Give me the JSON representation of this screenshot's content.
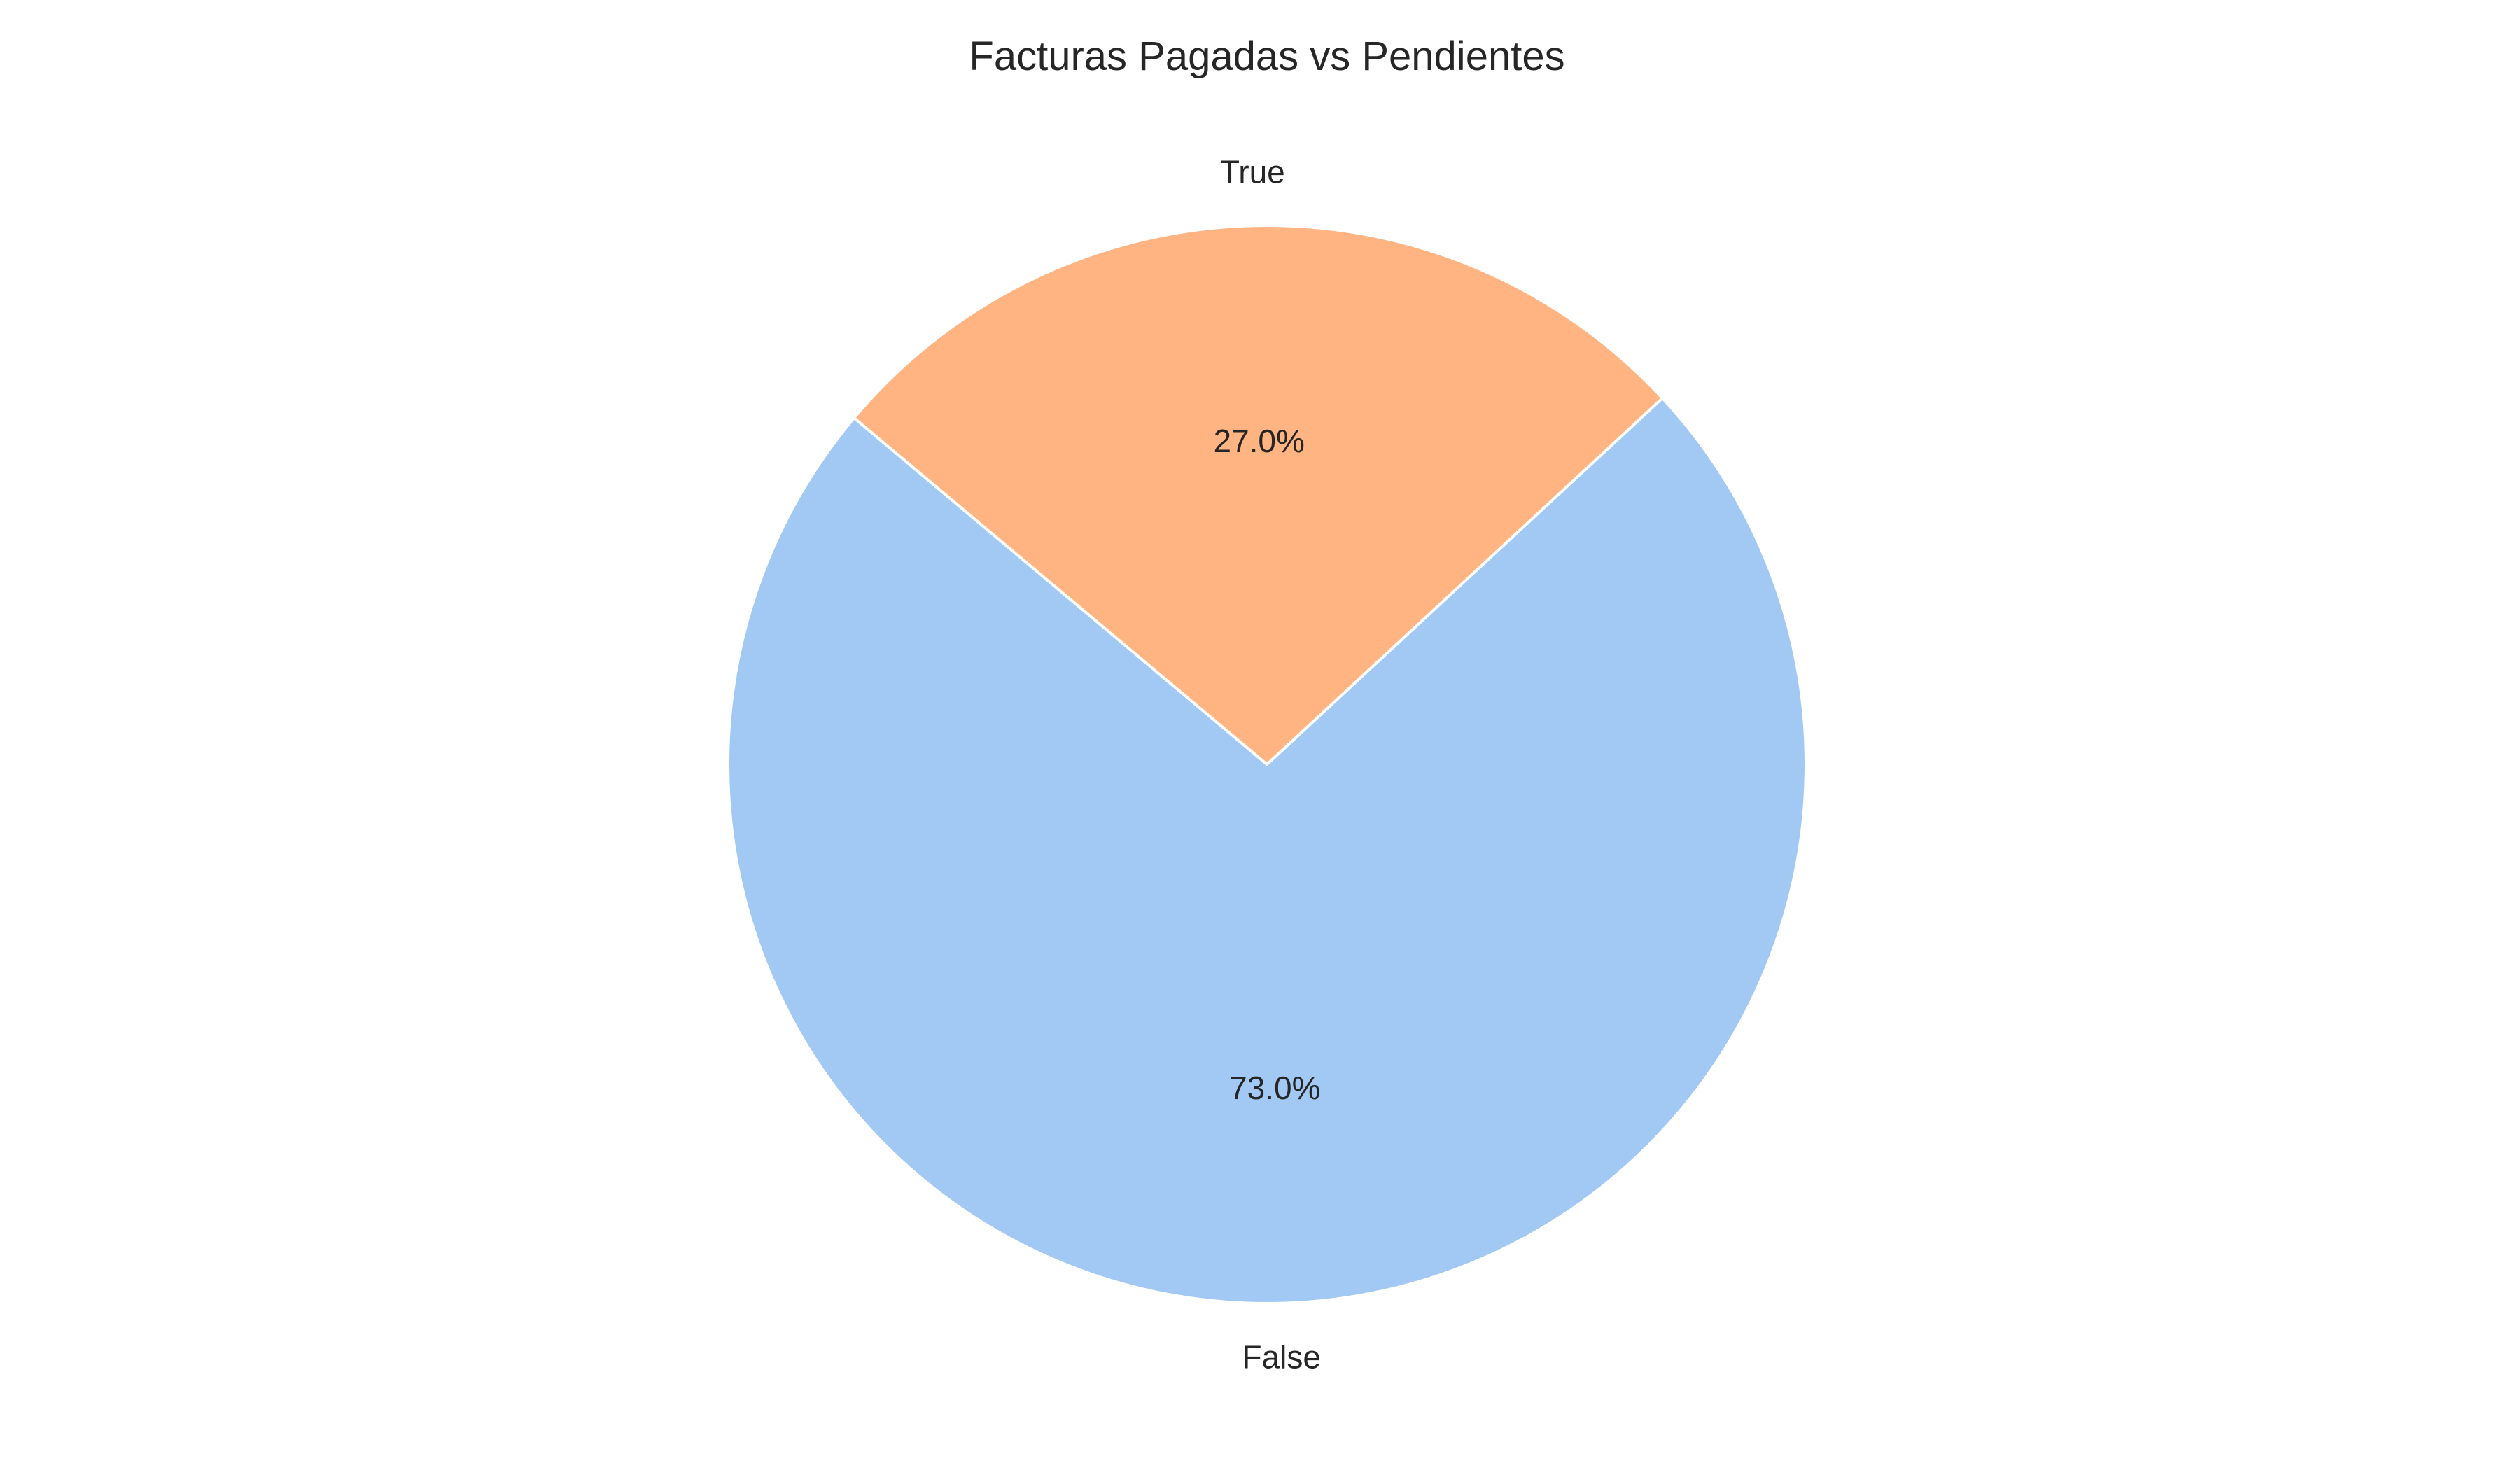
{
  "chart_data": {
    "type": "pie",
    "title": "Facturas Pagadas vs Pendientes",
    "slices": [
      {
        "label": "False",
        "value": 73.0,
        "pct_label": "73.0%",
        "color": "#a1c9f4"
      },
      {
        "label": "True",
        "value": 27.0,
        "pct_label": "27.0%",
        "color": "#ffb482"
      }
    ],
    "start_angle": 140,
    "counterclock": true,
    "edge_color": "#ffffff",
    "legend": "none"
  }
}
